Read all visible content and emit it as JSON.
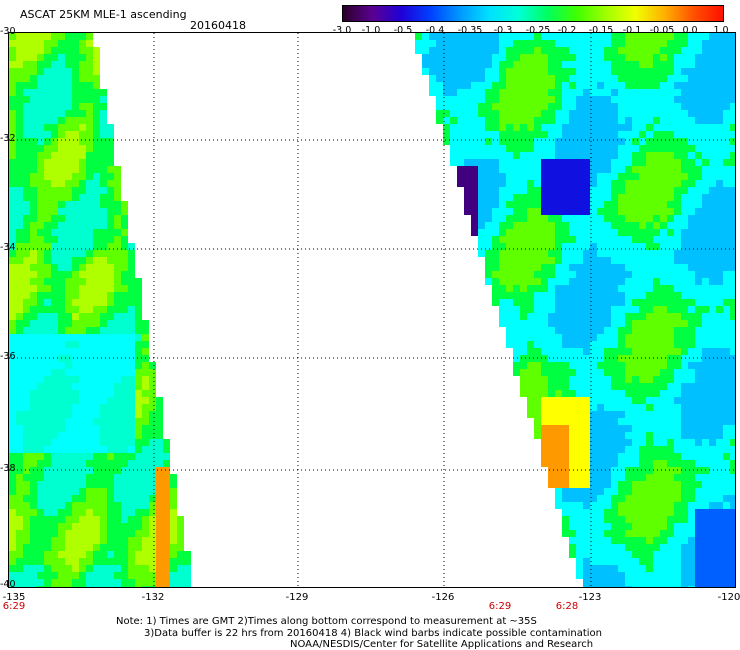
{
  "header": {
    "title": "ASCAT 25KM MLE-1 ascending",
    "date": "20160418"
  },
  "colorbar": {
    "labels": [
      "-3.0",
      "-1.0",
      "-0.5",
      "-0.4",
      "-0.35",
      "-0.3",
      "-0.25",
      "-0.2",
      "-0.15",
      "-0.1",
      "-0.05",
      "0.0",
      "1.0"
    ],
    "colors": [
      "#2a0028",
      "#5a0090",
      "#2000d8",
      "#0040ff",
      "#0098ff",
      "#00e0ff",
      "#00ffd8",
      "#00ff60",
      "#40ff00",
      "#a0ff00",
      "#f0ff00",
      "#ffb000",
      "#ff5000",
      "#ff1000"
    ]
  },
  "axes": {
    "lat_labels": [
      "-30",
      "-32",
      "-34",
      "-36",
      "-38",
      "-40"
    ],
    "lon_labels": [
      "-135",
      "-132",
      "-129",
      "-126",
      "-123",
      "-120"
    ],
    "time_labels": [
      "6:29",
      "6:29",
      "6:28"
    ]
  },
  "notes": {
    "line1": "Note: 1) Times are GMT 2)Times along bottom correspond to measurement at ~35S",
    "line2": "3)Data buffer is 22 hrs from 20160418 4) Black wind barbs indicate possible contamination",
    "line3": "NOAA/NESDIS/Center for Satellite Applications and Research"
  },
  "palette": {
    "cyan": "#00ffff",
    "aqua": "#00ffd0",
    "green": "#00ff40",
    "lime": "#60ff00",
    "yellowgreen": "#b0ff00",
    "yellow": "#ffff00",
    "orange": "#ff9900",
    "blue": "#0060ff",
    "darkblue": "#1010e0",
    "purple": "#400080",
    "lightblue": "#00c0ff"
  }
}
